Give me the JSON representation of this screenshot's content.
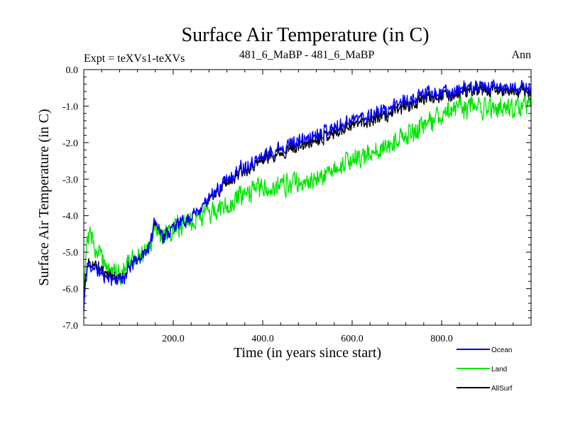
{
  "chart_data": {
    "type": "line",
    "title": "Surface Air Temperature (in C)",
    "subtitle_left": "Expt = teXVs1-teXVs",
    "subtitle_center": "481_6_MaBP - 481_6_MaBP",
    "subtitle_right": "Ann",
    "xlabel": "Time (in years since start)",
    "ylabel": "Surface Air Temperature (in C)",
    "xlim": [
      0,
      1000
    ],
    "ylim": [
      -7.0,
      0.0
    ],
    "x_ticks": [
      200,
      400,
      600,
      800
    ],
    "x_tick_labels": [
      "200.0",
      "400.0",
      "600.0",
      "800.0"
    ],
    "y_ticks": [
      0,
      -1,
      -2,
      -3,
      -4,
      -5,
      -6,
      -7
    ],
    "y_tick_labels": [
      "0.0",
      "-1.0",
      "-2.0",
      "-3.0",
      "-4.0",
      "-5.0",
      "-6.0",
      "-7.0"
    ],
    "legend_position": "bottom-right, below plot",
    "series": [
      {
        "name": "Ocean",
        "color": "#0000ff",
        "noise": 0.1,
        "knots_x": [
          0,
          2,
          8,
          20,
          40,
          60,
          80,
          95,
          110,
          130,
          150,
          158,
          165,
          180,
          200,
          230,
          260,
          290,
          320,
          350,
          380,
          410,
          440,
          470,
          500,
          530,
          560,
          590,
          620,
          650,
          680,
          710,
          740,
          770,
          800,
          830,
          860,
          900,
          950,
          1000
        ],
        "knots_y": [
          -6.6,
          -6.2,
          -5.4,
          -5.4,
          -5.6,
          -5.7,
          -5.8,
          -5.6,
          -5.3,
          -5.1,
          -4.8,
          -4.0,
          -4.3,
          -4.6,
          -4.3,
          -4.1,
          -3.8,
          -3.4,
          -3.0,
          -2.7,
          -2.5,
          -2.3,
          -2.1,
          -2.0,
          -1.9,
          -1.7,
          -1.6,
          -1.4,
          -1.3,
          -1.2,
          -1.1,
          -0.9,
          -0.8,
          -0.6,
          -0.6,
          -0.6,
          -0.5,
          -0.5,
          -0.5,
          -0.5
        ]
      },
      {
        "name": "Land",
        "color": "#00e600",
        "noise": 0.15,
        "knots_x": [
          0,
          2,
          8,
          20,
          40,
          60,
          80,
          95,
          110,
          130,
          150,
          158,
          165,
          180,
          200,
          230,
          260,
          290,
          320,
          350,
          380,
          410,
          440,
          470,
          500,
          530,
          560,
          590,
          620,
          650,
          680,
          710,
          740,
          770,
          800,
          830,
          860,
          900,
          950,
          1000
        ],
        "knots_y": [
          -6.5,
          -5.5,
          -4.4,
          -4.7,
          -5.1,
          -5.5,
          -5.6,
          -5.4,
          -5.2,
          -5.0,
          -4.8,
          -4.4,
          -4.5,
          -4.6,
          -4.4,
          -4.2,
          -4.0,
          -3.9,
          -3.7,
          -3.5,
          -3.3,
          -3.2,
          -3.2,
          -3.1,
          -3.1,
          -2.9,
          -2.7,
          -2.5,
          -2.4,
          -2.3,
          -2.1,
          -1.9,
          -1.7,
          -1.5,
          -1.2,
          -1.1,
          -1.0,
          -1.0,
          -1.1,
          -0.9
        ]
      },
      {
        "name": "AllSurf",
        "color": "#000000",
        "noise": 0.09,
        "knots_x": [
          0,
          2,
          8,
          20,
          40,
          60,
          80,
          95,
          110,
          130,
          150,
          158,
          165,
          180,
          200,
          230,
          260,
          290,
          320,
          350,
          380,
          410,
          440,
          470,
          500,
          530,
          560,
          590,
          620,
          650,
          680,
          710,
          740,
          770,
          800,
          830,
          860,
          900,
          950,
          1000
        ],
        "knots_y": [
          -6.55,
          -6.0,
          -5.3,
          -5.3,
          -5.5,
          -5.6,
          -5.75,
          -5.55,
          -5.3,
          -5.1,
          -4.8,
          -4.1,
          -4.3,
          -4.55,
          -4.3,
          -4.1,
          -3.8,
          -3.45,
          -3.1,
          -2.8,
          -2.6,
          -2.4,
          -2.25,
          -2.15,
          -2.05,
          -1.85,
          -1.75,
          -1.55,
          -1.45,
          -1.35,
          -1.25,
          -1.05,
          -0.95,
          -0.75,
          -0.7,
          -0.7,
          -0.6,
          -0.6,
          -0.6,
          -0.6
        ]
      }
    ]
  }
}
